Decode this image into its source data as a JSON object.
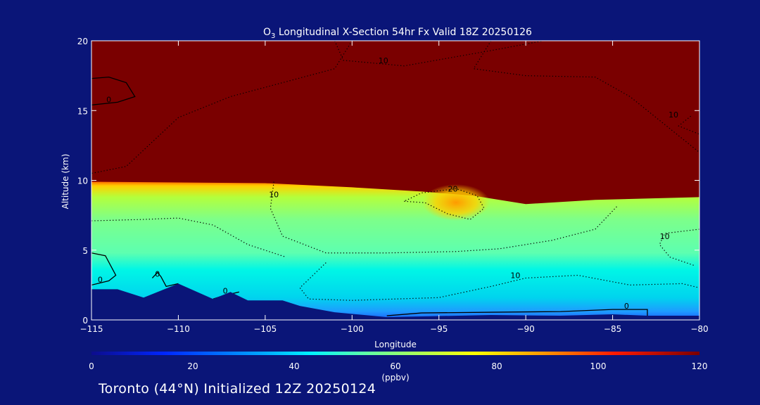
{
  "chart_data": {
    "type": "heatmap",
    "title_prefix": "O",
    "title_sub": "3",
    "title_rest": " Longitudinal X-Section 54hr  Fx Valid 18Z 20250126",
    "xlabel": "Longitude",
    "ylabel": "Altitude (km)",
    "xlim": [
      -115,
      -80
    ],
    "ylim": [
      0,
      20
    ],
    "x_ticks": [
      -115,
      -110,
      -105,
      -100,
      -95,
      -90,
      -85,
      -80
    ],
    "x_tick_labels": [
      "−115",
      "−110",
      "−105",
      "−100",
      "−95",
      "−90",
      "−85",
      "−80"
    ],
    "y_ticks": [
      0,
      5,
      10,
      15,
      20
    ],
    "y_tick_labels": [
      "0",
      "5",
      "10",
      "15",
      "20"
    ],
    "colorbar": {
      "min": 0,
      "max": 120,
      "ticks": [
        0,
        20,
        40,
        60,
        80,
        100,
        120
      ],
      "tick_labels": [
        "0",
        "20",
        "40",
        "60",
        "80",
        "100",
        "120"
      ],
      "unit_label": "(ppbv)"
    },
    "ozone_fields": {
      "tropopause_altitude_km": [
        {
          "lon": -115,
          "alt": 9.9
        },
        {
          "lon": -105,
          "alt": 9.8
        },
        {
          "lon": -100,
          "alt": 9.5
        },
        {
          "lon": -96,
          "alt": 9.2
        },
        {
          "lon": -93,
          "alt": 8.9
        },
        {
          "lon": -90,
          "alt": 8.3
        },
        {
          "lon": -86,
          "alt": 8.6
        },
        {
          "lon": -80,
          "alt": 8.8
        }
      ],
      "stratosphere_value": 120,
      "troposphere_mid_value": 55,
      "boundary_layer_value": 40
    },
    "contour_labels": [
      {
        "text": "0",
        "lon": -114,
        "alt": 15.6
      },
      {
        "text": "10",
        "lon": -98.2,
        "alt": 18.4
      },
      {
        "text": "10",
        "lon": -81.5,
        "alt": 14.5
      },
      {
        "text": "10",
        "lon": -104.5,
        "alt": 8.8
      },
      {
        "text": "20",
        "lon": -94.2,
        "alt": 9.2
      },
      {
        "text": "10",
        "lon": -82,
        "alt": 5.8
      },
      {
        "text": "0",
        "lon": -114.5,
        "alt": 2.7
      },
      {
        "text": "0",
        "lon": -111.2,
        "alt": 3.1
      },
      {
        "text": "0",
        "lon": -107.3,
        "alt": 1.9
      },
      {
        "text": "10",
        "lon": -90.6,
        "alt": 3.0
      },
      {
        "text": "0",
        "lon": -84.2,
        "alt": 0.8
      }
    ],
    "terrain": [
      {
        "lon": -115,
        "alt": 2.2
      },
      {
        "lon": -113.5,
        "alt": 2.2
      },
      {
        "lon": -112,
        "alt": 1.6
      },
      {
        "lon": -110,
        "alt": 2.6
      },
      {
        "lon": -108,
        "alt": 1.5
      },
      {
        "lon": -107,
        "alt": 2.0
      },
      {
        "lon": -106,
        "alt": 1.4
      },
      {
        "lon": -104,
        "alt": 1.4
      },
      {
        "lon": -103,
        "alt": 1.0
      },
      {
        "lon": -101,
        "alt": 0.55
      },
      {
        "lon": -98,
        "alt": 0.2
      },
      {
        "lon": -92,
        "alt": 0.35
      },
      {
        "lon": -88,
        "alt": 0.3
      },
      {
        "lon": -85,
        "alt": 0.4
      },
      {
        "lon": -83,
        "alt": 0.3
      },
      {
        "lon": -80,
        "alt": 0.3
      }
    ]
  },
  "footer": "Toronto (44°N) Initialized 12Z 20250124"
}
